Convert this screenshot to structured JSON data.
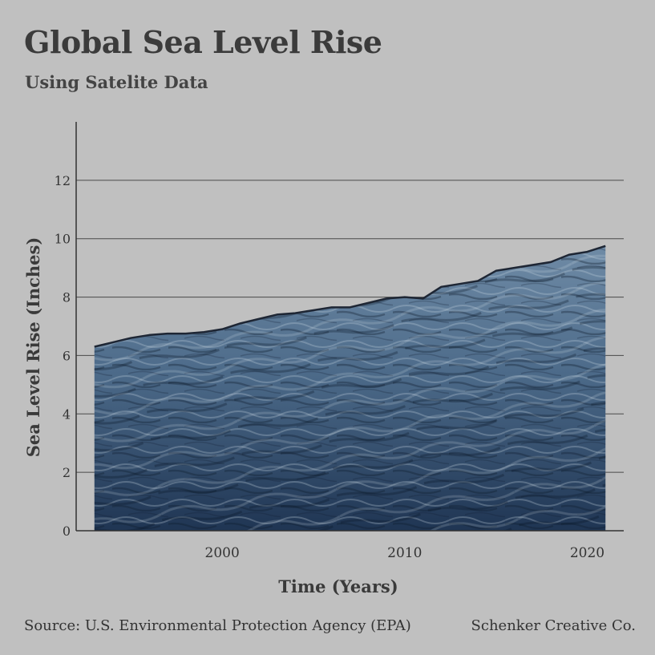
{
  "chart_data": {
    "type": "area",
    "title": "Global Sea Level Rise",
    "subtitle": "Using Satelite Data",
    "xlabel": "Time (Years)",
    "ylabel": "Sea Level Rise (Inches)",
    "xlim": [
      1992,
      2022
    ],
    "ylim": [
      0,
      14
    ],
    "x_ticks": [
      2000,
      2010,
      2020
    ],
    "y_ticks": [
      0,
      2,
      4,
      6,
      8,
      10,
      12
    ],
    "grid": "horizontal",
    "x": [
      1993,
      1994,
      1995,
      1996,
      1997,
      1998,
      1999,
      2000,
      2001,
      2002,
      2003,
      2004,
      2005,
      2006,
      2007,
      2008,
      2009,
      2010,
      2011,
      2012,
      2013,
      2014,
      2015,
      2016,
      2017,
      2018,
      2019,
      2020,
      2021
    ],
    "values": [
      6.3,
      6.45,
      6.6,
      6.7,
      6.75,
      6.75,
      6.8,
      6.9,
      7.1,
      7.25,
      7.4,
      7.45,
      7.55,
      7.65,
      7.65,
      7.8,
      7.95,
      8.0,
      7.95,
      8.35,
      8.45,
      8.55,
      8.9,
      9.0,
      9.1,
      9.2,
      9.45,
      9.55,
      9.75
    ],
    "colors": {
      "line": "#1e2634",
      "fill_top": "#5b7b98",
      "fill_bottom": "#1d3350",
      "grid": "#4a4a4a",
      "axis": "#333333"
    }
  },
  "footer": {
    "source": "Source: U.S. Environmental Protection Agency (EPA)",
    "credit": "Schenker Creative Co."
  }
}
